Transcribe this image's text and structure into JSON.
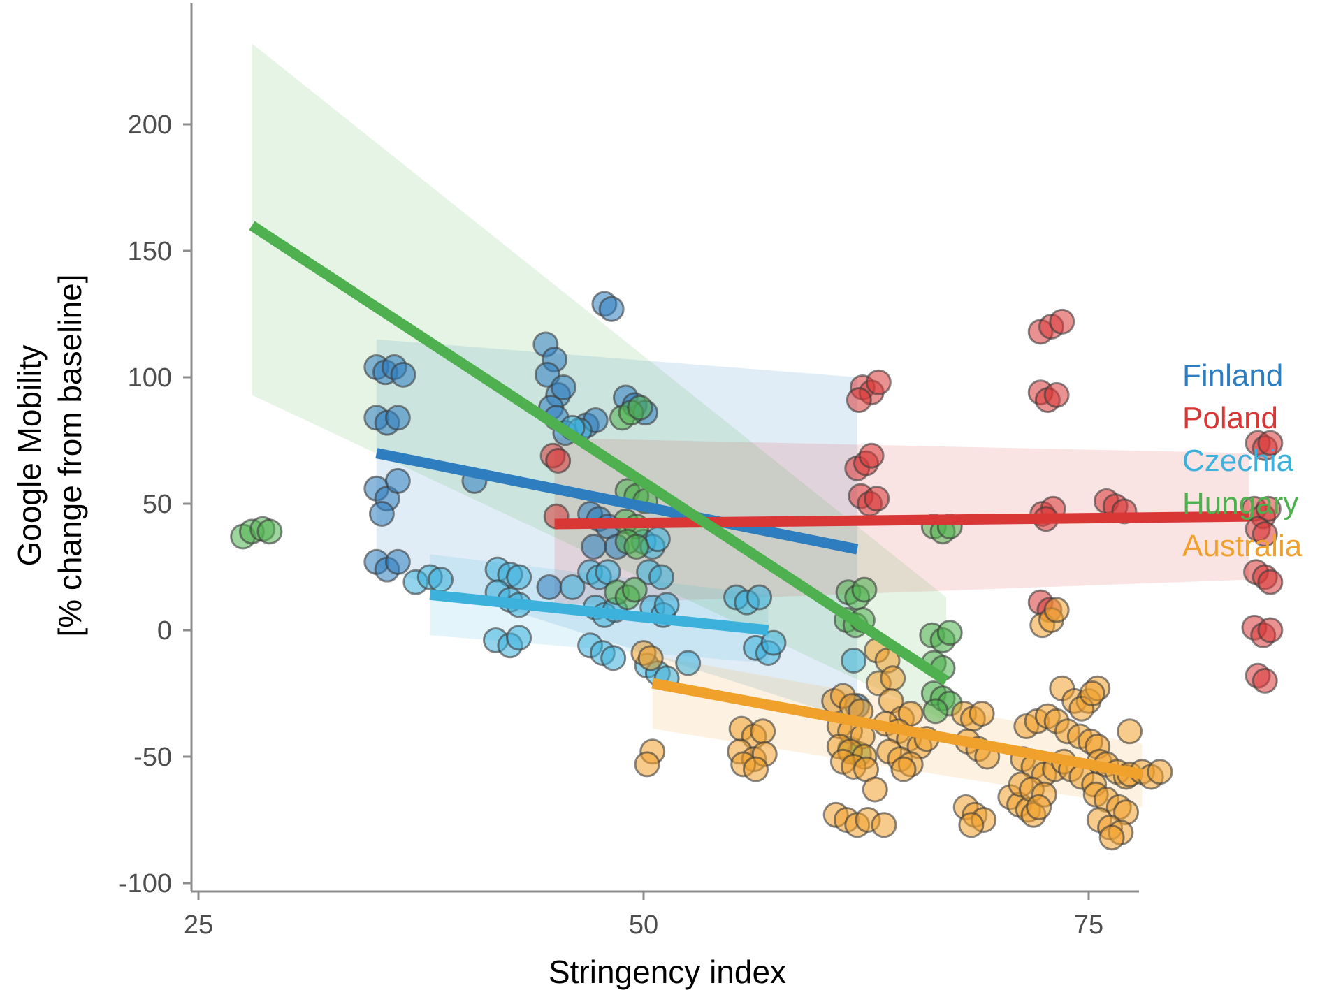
{
  "chart_data": {
    "type": "scatter",
    "title": "",
    "xlabel": "Stringency index",
    "ylabel_lines": [
      "Google Mobility",
      "[% change from baseline]"
    ],
    "xlim": [
      24.5,
      86
    ],
    "ylim": [
      -100,
      248
    ],
    "x_ticks": [
      25,
      50,
      75
    ],
    "y_ticks": [
      200,
      150,
      100,
      50,
      0,
      -50,
      -100
    ],
    "grid": false,
    "legend_position": "right",
    "series": [
      {
        "name": "Finland",
        "color": "#2e7ebf",
        "fit": {
          "x": [
            35,
            62
          ],
          "y": [
            70,
            32
          ]
        },
        "band": {
          "x": [
            35,
            62
          ],
          "upper": [
            115,
            100
          ],
          "lower": [
            25,
            -36
          ]
        },
        "points": [
          [
            35,
            104
          ],
          [
            35.5,
            102
          ],
          [
            36,
            104
          ],
          [
            36.5,
            101
          ],
          [
            35,
            84
          ],
          [
            35.6,
            82
          ],
          [
            36.2,
            84
          ],
          [
            35,
            56
          ],
          [
            35.6,
            52
          ],
          [
            36.2,
            59
          ],
          [
            35,
            27
          ],
          [
            35.6,
            24
          ],
          [
            36.2,
            27
          ],
          [
            35.3,
            46
          ],
          [
            40.5,
            59
          ],
          [
            44.5,
            113
          ],
          [
            45,
            107
          ],
          [
            44.6,
            101
          ],
          [
            45.2,
            93
          ],
          [
            44.8,
            88
          ],
          [
            45.5,
            96
          ],
          [
            45.1,
            84
          ],
          [
            45.6,
            78
          ],
          [
            46.8,
            81
          ],
          [
            47.3,
            83
          ],
          [
            47.8,
            129
          ],
          [
            48.2,
            127
          ],
          [
            49,
            92
          ],
          [
            49.5,
            89
          ],
          [
            50.1,
            86
          ],
          [
            47,
            46
          ],
          [
            47.5,
            44
          ],
          [
            48,
            41
          ],
          [
            48.5,
            33
          ],
          [
            47.2,
            33
          ],
          [
            44.7,
            17
          ],
          [
            62,
            -30
          ]
        ]
      },
      {
        "name": "Poland",
        "color": "#d93636",
        "fit": {
          "x": [
            45,
            84
          ],
          "y": [
            42,
            45
          ]
        },
        "band": {
          "x": [
            45,
            84
          ],
          "upper": [
            76,
            70
          ],
          "lower": [
            10,
            20
          ]
        },
        "points": [
          [
            44.9,
            69
          ],
          [
            45.2,
            67
          ],
          [
            45.1,
            45
          ],
          [
            62.3,
            96
          ],
          [
            62.8,
            94
          ],
          [
            63.2,
            98
          ],
          [
            62.1,
            91
          ],
          [
            62,
            64
          ],
          [
            62.5,
            66
          ],
          [
            62.8,
            69
          ],
          [
            62.2,
            53
          ],
          [
            62.7,
            50
          ],
          [
            63.1,
            52
          ],
          [
            72.3,
            118
          ],
          [
            72.9,
            120
          ],
          [
            73.5,
            122
          ],
          [
            72.3,
            94
          ],
          [
            72.7,
            91
          ],
          [
            73.2,
            93
          ],
          [
            72.4,
            46
          ],
          [
            73,
            48
          ],
          [
            72.6,
            44
          ],
          [
            72.3,
            11
          ],
          [
            72.8,
            8
          ],
          [
            76,
            51
          ],
          [
            76.5,
            49
          ],
          [
            77,
            47
          ],
          [
            84.5,
            74
          ],
          [
            84.9,
            72
          ],
          [
            85.2,
            74
          ],
          [
            84.3,
            48
          ],
          [
            84.8,
            45
          ],
          [
            85.1,
            48
          ],
          [
            84.5,
            40
          ],
          [
            84.9,
            38
          ],
          [
            84.4,
            23
          ],
          [
            84.9,
            21
          ],
          [
            85.2,
            19
          ],
          [
            84.3,
            1
          ],
          [
            84.8,
            -2
          ],
          [
            85.2,
            0
          ],
          [
            84.5,
            -18
          ],
          [
            84.9,
            -20
          ]
        ]
      },
      {
        "name": "Czechia",
        "color": "#3bb1dc",
        "fit": {
          "x": [
            38,
            57
          ],
          "y": [
            14,
            0
          ]
        },
        "band": {
          "x": [
            38,
            57
          ],
          "upper": [
            30,
            14
          ],
          "lower": [
            -2,
            -13
          ]
        },
        "points": [
          [
            37.2,
            19
          ],
          [
            38,
            21
          ],
          [
            38.6,
            20
          ],
          [
            41.8,
            24
          ],
          [
            42.5,
            22
          ],
          [
            43,
            21
          ],
          [
            41.8,
            15
          ],
          [
            42.5,
            12
          ],
          [
            43,
            10
          ],
          [
            41.7,
            -4
          ],
          [
            42.5,
            -6
          ],
          [
            43,
            -3
          ],
          [
            46,
            17
          ],
          [
            46.4,
            79
          ],
          [
            46,
            80
          ],
          [
            47,
            23
          ],
          [
            47.5,
            21
          ],
          [
            48,
            23
          ],
          [
            47.3,
            9
          ],
          [
            47.8,
            6
          ],
          [
            48.4,
            8
          ],
          [
            47,
            -6
          ],
          [
            47.7,
            -9
          ],
          [
            48.3,
            -11
          ],
          [
            50,
            35
          ],
          [
            50.5,
            33
          ],
          [
            50.8,
            36
          ],
          [
            50.3,
            23
          ],
          [
            51,
            21
          ],
          [
            50.5,
            9
          ],
          [
            51.1,
            6
          ],
          [
            51.3,
            10
          ],
          [
            50.2,
            -14
          ],
          [
            50.8,
            -17
          ],
          [
            51.3,
            -19
          ],
          [
            52.5,
            -13
          ],
          [
            55.2,
            13
          ],
          [
            55.8,
            11
          ],
          [
            56.5,
            13
          ],
          [
            56.3,
            -7
          ],
          [
            57,
            -9
          ],
          [
            57.3,
            -5
          ],
          [
            61.8,
            -12
          ]
        ]
      },
      {
        "name": "Hungary",
        "color": "#4eb04e",
        "fit": {
          "x": [
            28,
            67
          ],
          "y": [
            160,
            -20
          ]
        },
        "band": {
          "x": [
            28,
            67
          ],
          "upper": [
            232,
            13
          ],
          "lower": [
            93,
            -36
          ]
        },
        "points": [
          [
            27.5,
            37
          ],
          [
            28,
            39
          ],
          [
            28.6,
            40
          ],
          [
            29,
            39
          ],
          [
            48.8,
            84
          ],
          [
            49.3,
            86
          ],
          [
            49.8,
            88
          ],
          [
            49.1,
            55
          ],
          [
            49.6,
            53
          ],
          [
            50.1,
            51
          ],
          [
            49,
            43
          ],
          [
            49.6,
            41
          ],
          [
            49.1,
            35
          ],
          [
            49.6,
            33
          ],
          [
            48.5,
            15
          ],
          [
            49.1,
            13
          ],
          [
            49.5,
            16
          ],
          [
            61.5,
            15
          ],
          [
            62,
            13
          ],
          [
            62.4,
            16
          ],
          [
            61.4,
            4
          ],
          [
            61.9,
            2
          ],
          [
            62.3,
            4
          ],
          [
            61.6,
            -47
          ],
          [
            62.1,
            -49
          ],
          [
            66.3,
            41
          ],
          [
            66.8,
            39
          ],
          [
            67.2,
            41
          ],
          [
            66.2,
            -2
          ],
          [
            66.8,
            -4
          ],
          [
            67.2,
            -1
          ],
          [
            66.3,
            -13
          ],
          [
            66.8,
            -15
          ],
          [
            66.3,
            -25
          ],
          [
            66.8,
            -27
          ],
          [
            67.2,
            -29
          ],
          [
            66.4,
            -32
          ]
        ]
      },
      {
        "name": "Australia",
        "color": "#f0a12c",
        "fit": {
          "x": [
            50.5,
            78
          ],
          "y": [
            -21,
            -57
          ]
        },
        "band": {
          "x": [
            50.5,
            78
          ],
          "upper": [
            -10,
            -45
          ],
          "lower": [
            -39,
            -70
          ]
        },
        "points": [
          [
            50,
            -9
          ],
          [
            50.4,
            -11
          ],
          [
            50.5,
            -48
          ],
          [
            50.2,
            -53
          ],
          [
            55.5,
            -39
          ],
          [
            56.2,
            -42
          ],
          [
            56.7,
            -40
          ],
          [
            55.4,
            -48
          ],
          [
            56.2,
            -51
          ],
          [
            56.8,
            -49
          ],
          [
            55.6,
            -53
          ],
          [
            56.3,
            -55
          ],
          [
            60.7,
            -28
          ],
          [
            61.2,
            -26
          ],
          [
            61.7,
            -30
          ],
          [
            62.2,
            -32
          ],
          [
            61,
            -38
          ],
          [
            61.6,
            -40
          ],
          [
            62.3,
            -42
          ],
          [
            61,
            -46
          ],
          [
            61.6,
            -48
          ],
          [
            62.4,
            -50
          ],
          [
            61.2,
            -52
          ],
          [
            61.8,
            -54
          ],
          [
            62.5,
            -55
          ],
          [
            60.8,
            -73
          ],
          [
            61.4,
            -75
          ],
          [
            62,
            -77
          ],
          [
            62.6,
            -75
          ],
          [
            63.5,
            -77
          ],
          [
            63.1,
            -8
          ],
          [
            63.7,
            -12
          ],
          [
            63.2,
            -21
          ],
          [
            64,
            -19
          ],
          [
            63.9,
            -28
          ],
          [
            64.5,
            -35
          ],
          [
            65,
            -33
          ],
          [
            63.6,
            -37
          ],
          [
            64.3,
            -40
          ],
          [
            64.9,
            -43
          ],
          [
            65.5,
            -46
          ],
          [
            63.8,
            -48
          ],
          [
            64.4,
            -51
          ],
          [
            65,
            -53
          ],
          [
            64.6,
            -55
          ],
          [
            63,
            -63
          ],
          [
            65.9,
            -43
          ],
          [
            68,
            -33
          ],
          [
            68.5,
            -35
          ],
          [
            69,
            -33
          ],
          [
            68.2,
            -44
          ],
          [
            68.8,
            -47
          ],
          [
            69.3,
            -50
          ],
          [
            68.1,
            -70
          ],
          [
            68.6,
            -73
          ],
          [
            69.1,
            -75
          ],
          [
            68.4,
            -77
          ],
          [
            70.6,
            -66
          ],
          [
            71.1,
            -69
          ],
          [
            71.6,
            -71
          ],
          [
            71.9,
            -73
          ],
          [
            71.5,
            -38
          ],
          [
            72.1,
            -36
          ],
          [
            72.7,
            -34
          ],
          [
            73.2,
            -36
          ],
          [
            71.3,
            -51
          ],
          [
            71.9,
            -54
          ],
          [
            72.5,
            -57
          ],
          [
            73.1,
            -55
          ],
          [
            73.6,
            -52
          ],
          [
            71.2,
            -61
          ],
          [
            71.8,
            -63
          ],
          [
            72.5,
            -65
          ],
          [
            72.2,
            -70
          ],
          [
            72.4,
            2
          ],
          [
            72.9,
            4
          ],
          [
            73.2,
            8
          ],
          [
            73.5,
            -23
          ],
          [
            74.2,
            -28
          ],
          [
            75,
            -28
          ],
          [
            74.6,
            -31
          ],
          [
            73.8,
            -40
          ],
          [
            74.5,
            -42
          ],
          [
            75.1,
            -44
          ],
          [
            75.5,
            -46
          ],
          [
            75.5,
            -23
          ],
          [
            75.2,
            -25
          ],
          [
            74,
            -55
          ],
          [
            74.6,
            -58
          ],
          [
            75.3,
            -61
          ],
          [
            75.6,
            -52
          ],
          [
            76,
            -53
          ],
          [
            76.6,
            -56
          ],
          [
            77.1,
            -58
          ],
          [
            75.4,
            -65
          ],
          [
            76,
            -67
          ],
          [
            76.7,
            -70
          ],
          [
            77.1,
            -72
          ],
          [
            75.6,
            -75
          ],
          [
            76.2,
            -78
          ],
          [
            76.8,
            -80
          ],
          [
            76.3,
            -82
          ],
          [
            77.3,
            -57
          ],
          [
            77.3,
            -40
          ],
          [
            78,
            -56
          ],
          [
            78.5,
            -58
          ],
          [
            79,
            -56
          ]
        ]
      }
    ]
  }
}
